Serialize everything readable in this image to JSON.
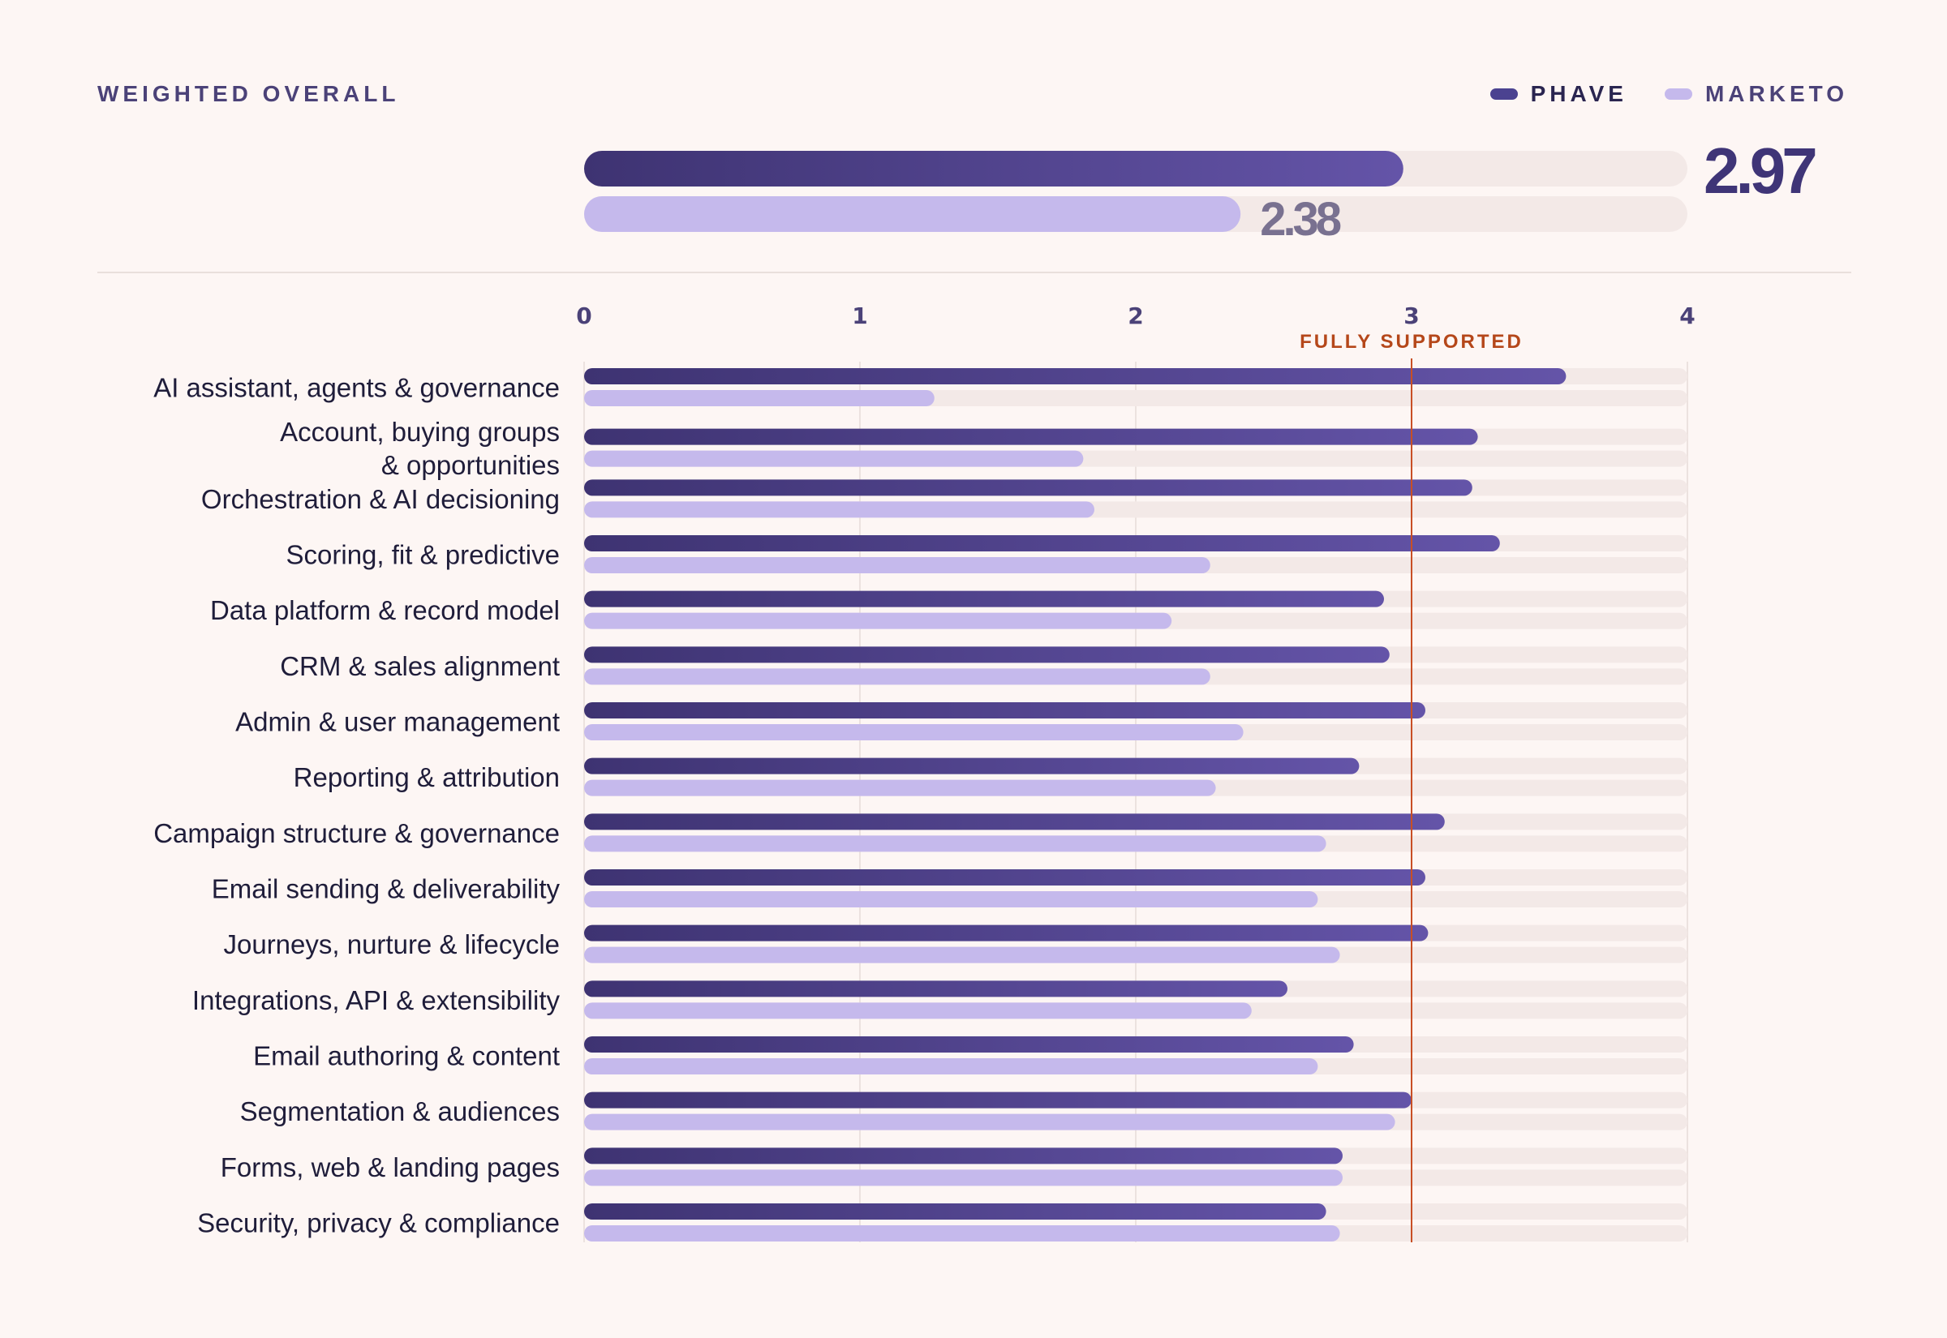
{
  "header": {
    "eyebrow": "WEIGHTED OVERALL"
  },
  "legend": [
    {
      "label": "PHAVE",
      "color": "#4b4290"
    },
    {
      "label": "MARKETO",
      "color": "#c5b9ec"
    }
  ],
  "colors": {
    "series_a_start": "#3e3372",
    "series_a_end": "#6454a8",
    "series_b": "#c5b9ec",
    "track": "#f3e9e7",
    "reference": "#c84f25",
    "gridline": "#ece2df"
  },
  "overall": {
    "series": [
      {
        "name": "PHAVE",
        "value": 2.97,
        "label": "2.97"
      },
      {
        "name": "MARKETO",
        "value": 2.38,
        "label": "2.38"
      }
    ]
  },
  "reference_line": {
    "value": 3,
    "label": "FULLY SUPPORTED"
  },
  "chart_data": {
    "type": "bar",
    "orientation": "horizontal",
    "xlim": [
      0,
      4
    ],
    "x_ticks": [
      "0",
      "1",
      "2",
      "3",
      "4"
    ],
    "grid": true,
    "legend_position": "top-right",
    "categories": [
      "AI assistant, agents & governance",
      "Account, buying groups & opportunities",
      "Orchestration & AI decisioning",
      "Scoring, fit & predictive",
      "Data platform & record model",
      "CRM & sales alignment",
      "Admin & user management",
      "Reporting & attribution",
      "Campaign structure & governance",
      "Email sending & deliverability",
      "Journeys, nurture & lifecycle",
      "Integrations, API & extensibility",
      "Email authoring & content",
      "Segmentation & audiences",
      "Forms, web & landing pages",
      "Security, privacy & compliance"
    ],
    "series": [
      {
        "name": "PHAVE",
        "values": [
          3.56,
          3.24,
          3.22,
          3.32,
          2.9,
          2.92,
          3.05,
          2.81,
          3.12,
          3.05,
          3.06,
          2.55,
          2.79,
          3.0,
          2.75,
          2.69
        ]
      },
      {
        "name": "MARKETO",
        "values": [
          1.27,
          1.81,
          1.85,
          2.27,
          2.13,
          2.27,
          2.39,
          2.29,
          2.69,
          2.66,
          2.74,
          2.42,
          2.66,
          2.94,
          2.75,
          2.74
        ]
      }
    ]
  }
}
